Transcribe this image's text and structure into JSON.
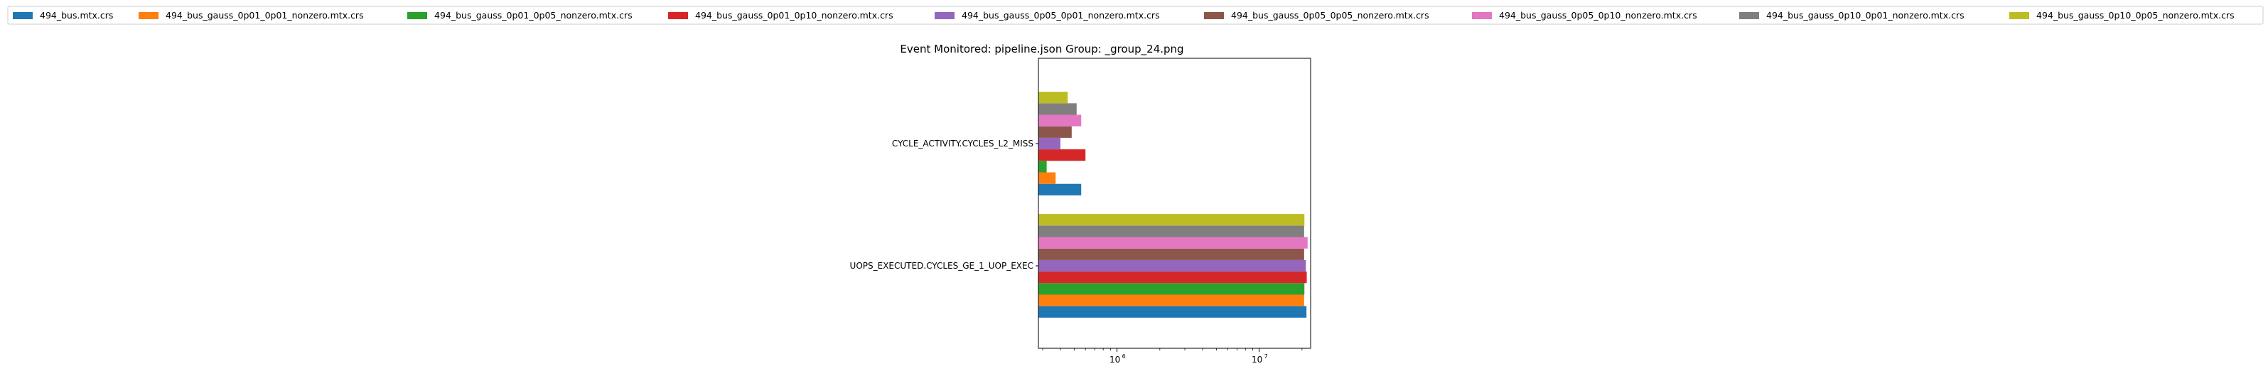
{
  "chart_data": {
    "type": "bar",
    "orientation": "horizontal",
    "title": "Event Monitored: pipeline.json Group: _group_24.png",
    "xlabel": "",
    "ylabel": "",
    "xscale": "log",
    "xlim": [
      280000,
      23000000
    ],
    "x_ticks": [
      {
        "label": "10",
        "exp": "6",
        "value": 1000000
      },
      {
        "label": "10",
        "exp": "7",
        "value": 10000000
      }
    ],
    "grid": false,
    "legend_position": "top, outside plot, single row",
    "categories": [
      "CYCLE_ACTIVITY.CYCLES_L2_MISS",
      "UOPS_EXECUTED.CYCLES_GE_1_UOP_EXEC"
    ],
    "series": [
      {
        "name": "494_bus.mtx.crs",
        "color": "#1f77b4",
        "values": [
          560000,
          21500000
        ]
      },
      {
        "name": "494_bus_gauss_0p01_0p01_nonzero.mtx.crs",
        "color": "#ff7f0e",
        "values": [
          370000,
          20700000
        ]
      },
      {
        "name": "494_bus_gauss_0p01_0p05_nonzero.mtx.crs",
        "color": "#2ca02c",
        "values": [
          320000,
          20800000
        ]
      },
      {
        "name": "494_bus_gauss_0p01_0p10_nonzero.mtx.crs",
        "color": "#d62728",
        "values": [
          600000,
          21600000
        ]
      },
      {
        "name": "494_bus_gauss_0p05_0p01_nonzero.mtx.crs",
        "color": "#9467bd",
        "values": [
          400000,
          21300000
        ]
      },
      {
        "name": "494_bus_gauss_0p05_0p05_nonzero.mtx.crs",
        "color": "#8c564b",
        "values": [
          480000,
          20700000
        ]
      },
      {
        "name": "494_bus_gauss_0p05_0p10_nonzero.mtx.crs",
        "color": "#e377c2",
        "values": [
          560000,
          21900000
        ]
      },
      {
        "name": "494_bus_gauss_0p10_0p01_nonzero.mtx.crs",
        "color": "#7f7f7f",
        "values": [
          520000,
          20700000
        ]
      },
      {
        "name": "494_bus_gauss_0p10_0p05_nonzero.mtx.crs",
        "color": "#bcbd22",
        "values": [
          450000,
          20800000
        ]
      }
    ]
  }
}
